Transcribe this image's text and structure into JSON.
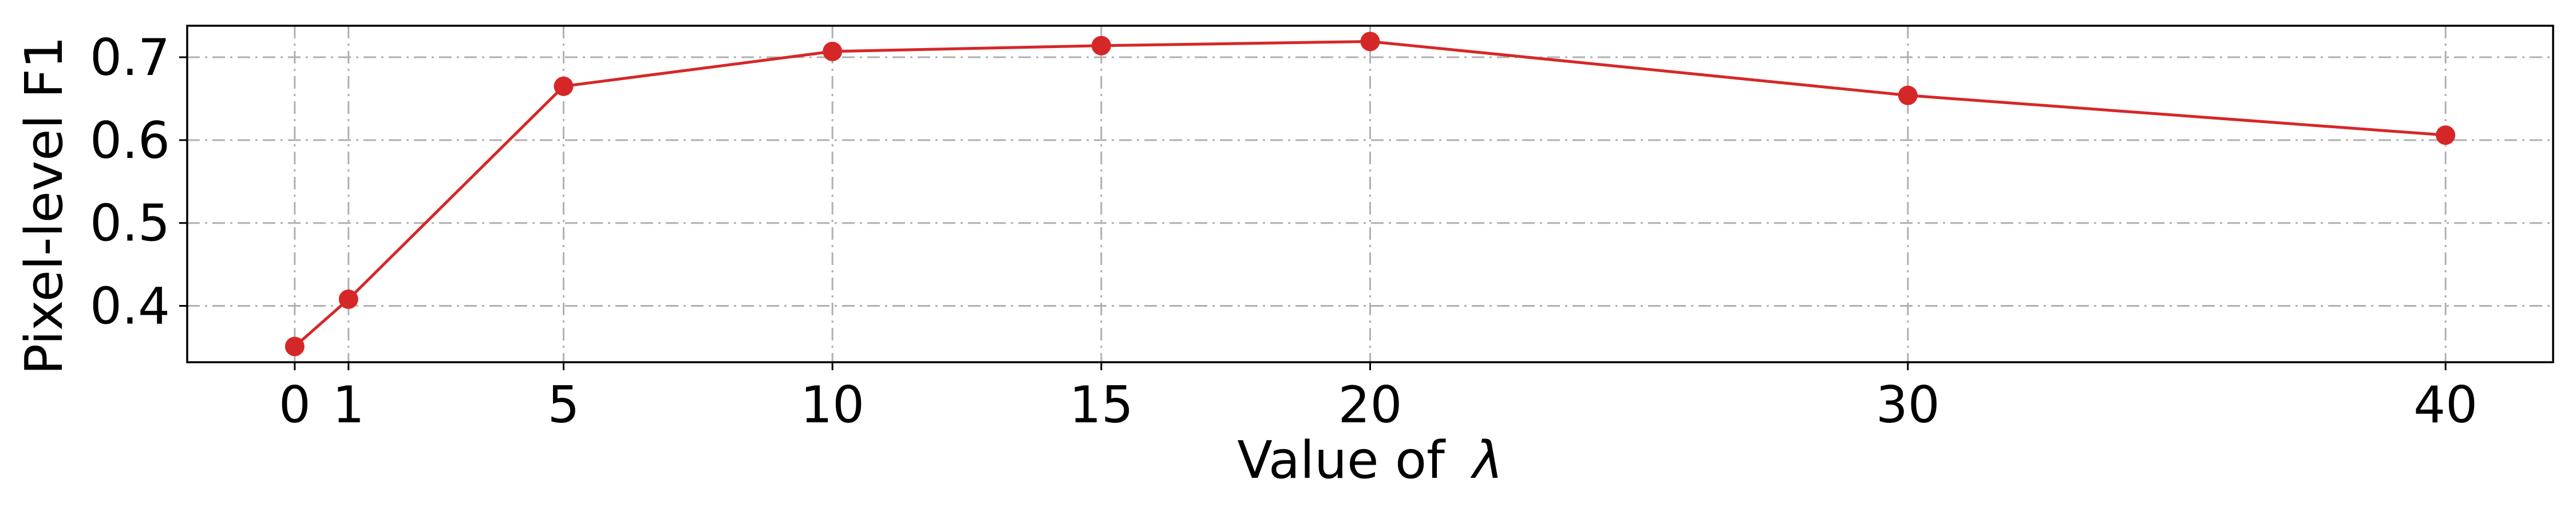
{
  "chart_data": {
    "type": "line",
    "title": "",
    "xlabel": "Value of",
    "xlabel_symbol": "λ",
    "ylabel": "Pixel-level F1",
    "x": [
      0,
      1,
      5,
      10,
      15,
      20,
      30,
      40
    ],
    "xticks": [
      0,
      1,
      5,
      10,
      15,
      20,
      30,
      40
    ],
    "xtick_labels": [
      "0",
      "1",
      "5",
      "10",
      "15",
      "20",
      "30",
      "40"
    ],
    "yticks": [
      0.4,
      0.5,
      0.6,
      0.7
    ],
    "ytick_labels": [
      "0.4",
      "0.5",
      "0.6",
      "0.7"
    ],
    "xlim": [
      -2,
      42
    ],
    "ylim": [
      0.332,
      0.738
    ],
    "grid": true,
    "legend": "none",
    "series": [
      {
        "values": [
          0.351,
          0.408,
          0.665,
          0.707,
          0.714,
          0.719,
          0.654,
          0.606
        ],
        "color": "#d62728",
        "marker": "circle"
      }
    ]
  }
}
